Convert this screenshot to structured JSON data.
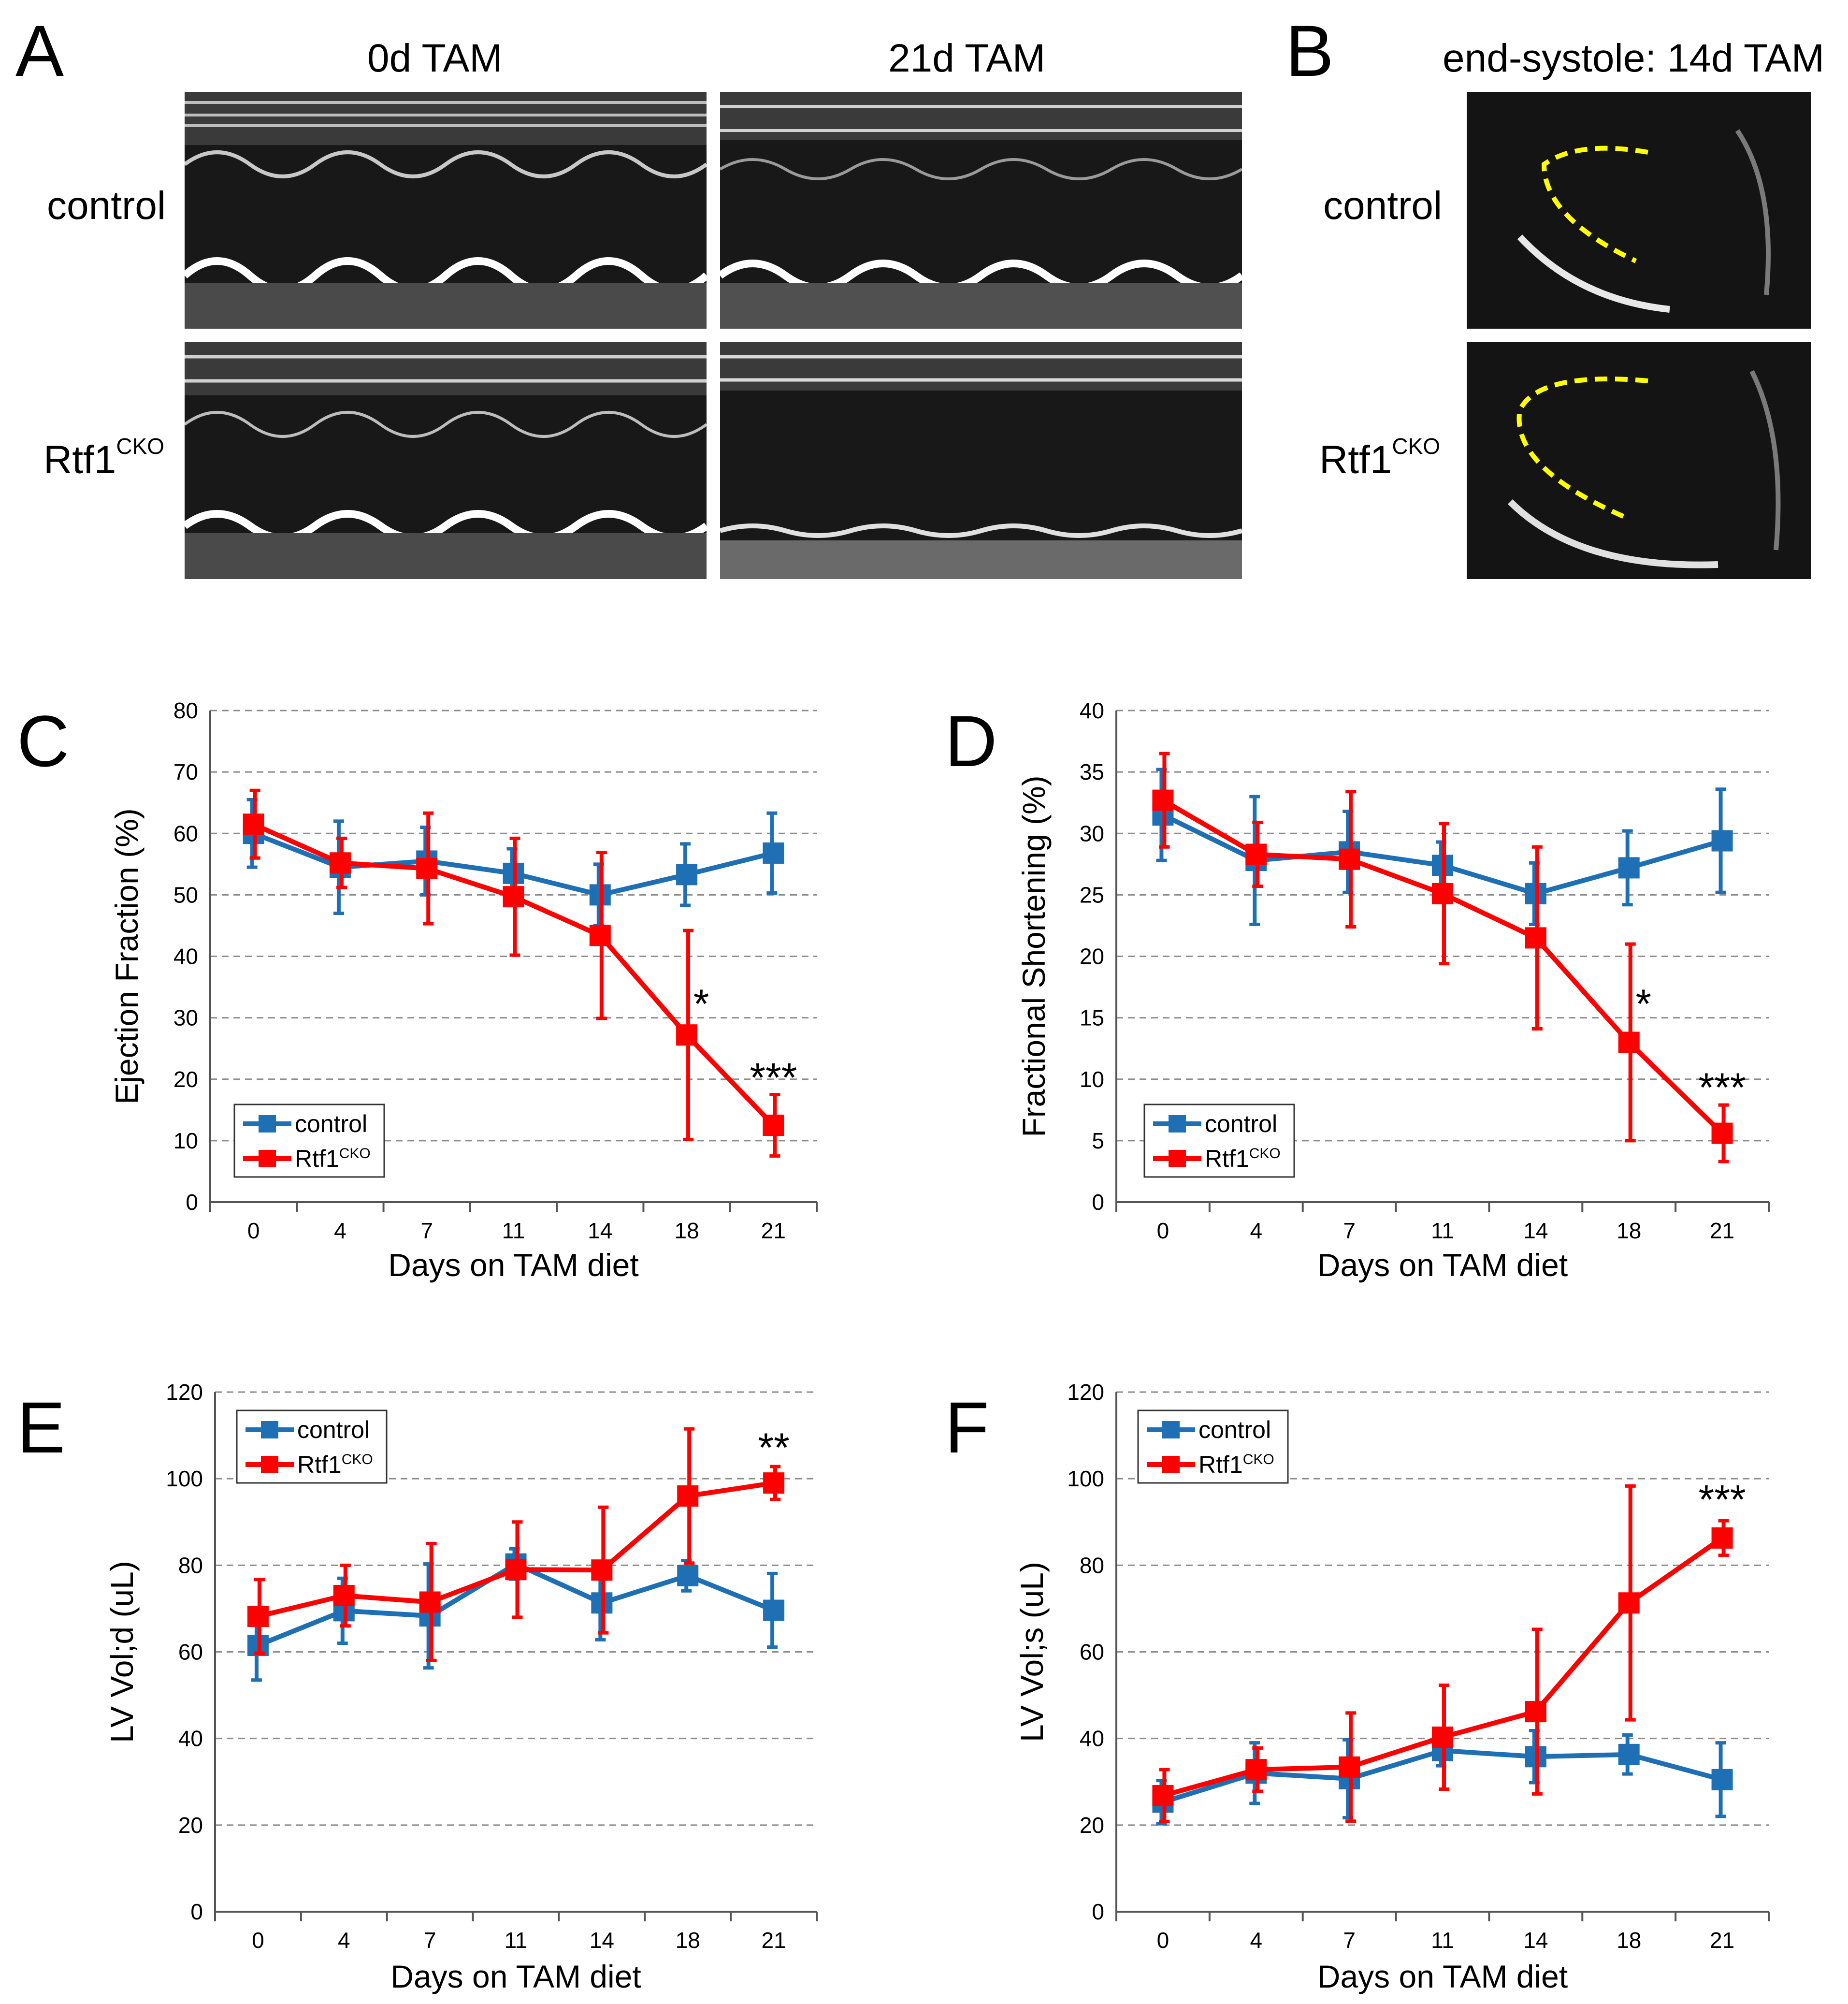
{
  "panels": {
    "A": {
      "letter": "A",
      "col_titles": [
        "0d TAM",
        "21d TAM"
      ],
      "row_labels": [
        {
          "base": "control",
          "sup": ""
        },
        {
          "base": "Rtf1",
          "sup": "CKO"
        }
      ]
    },
    "B": {
      "letter": "B",
      "title": "end-systole: 14d TAM",
      "row_labels": [
        {
          "base": "control",
          "sup": ""
        },
        {
          "base": "Rtf1",
          "sup": "CKO"
        }
      ],
      "trace_color": "#ffff00"
    }
  },
  "colors": {
    "control": "#1f6fb5",
    "rtf1": "#ff0000",
    "grid": "#8c8c8c"
  },
  "chart_data": [
    {
      "letter": "C",
      "type": "line",
      "ylabel": "Ejection Fraction (%)",
      "xlabel": "Days on TAM diet",
      "categories": [
        "0",
        "4",
        "7",
        "11",
        "14",
        "18",
        "21"
      ],
      "ylim": [
        0,
        80
      ],
      "yticks": [
        "0",
        "10",
        "20",
        "30",
        "40",
        "50",
        "60",
        "70",
        "80"
      ],
      "legend_position": "bottom-left",
      "series": [
        {
          "name": "control",
          "sup": "",
          "values": [
            60,
            54.5,
            55.5,
            53.5,
            50,
            53.3,
            56.8
          ],
          "err": [
            5.5,
            7.5,
            5.5,
            4,
            5,
            5,
            6.5
          ]
        },
        {
          "name": "Rtf1",
          "sup": "CKO",
          "values": [
            61.5,
            55.2,
            54.3,
            49.7,
            43.4,
            27.2,
            12.5
          ],
          "err": [
            5.5,
            4,
            9,
            9.5,
            13.5,
            17,
            5
          ]
        }
      ],
      "annotations": [
        {
          "text": "*",
          "category": "18",
          "y": 30
        },
        {
          "text": "***",
          "category": "21",
          "y": 18
        }
      ]
    },
    {
      "letter": "D",
      "type": "line",
      "ylabel": "Fractional Shortening (%)",
      "xlabel": "Days on TAM diet",
      "categories": [
        "0",
        "4",
        "7",
        "11",
        "14",
        "18",
        "21"
      ],
      "ylim": [
        0,
        40
      ],
      "yticks": [
        "0",
        "5",
        "10",
        "15",
        "20",
        "25",
        "30",
        "35",
        "40"
      ],
      "legend_position": "bottom-left",
      "series": [
        {
          "name": "control",
          "sup": "",
          "values": [
            31.5,
            27.8,
            28.5,
            27.4,
            25.1,
            27.2,
            29.4
          ],
          "err": [
            3.7,
            5.2,
            3.3,
            1.9,
            2.5,
            3,
            4.2
          ]
        },
        {
          "name": "Rtf1",
          "sup": "CKO",
          "values": [
            32.7,
            28.3,
            27.9,
            25.1,
            21.5,
            13,
            5.6
          ],
          "err": [
            3.8,
            2.6,
            5.5,
            5.7,
            7.4,
            8,
            2.3
          ]
        }
      ],
      "annotations": [
        {
          "text": "*",
          "category": "18",
          "y": 15
        },
        {
          "text": "***",
          "category": "21",
          "y": 8.2
        }
      ]
    },
    {
      "letter": "E",
      "type": "line",
      "ylabel": "LV Vol;d (uL)",
      "xlabel": "Days on TAM diet",
      "categories": [
        "0",
        "4",
        "7",
        "11",
        "14",
        "18",
        "21"
      ],
      "ylim": [
        0,
        120
      ],
      "yticks": [
        "0",
        "20",
        "40",
        "60",
        "80",
        "100",
        "120"
      ],
      "legend_position": "top-left",
      "series": [
        {
          "name": "control",
          "sup": "",
          "values": [
            61.5,
            69.5,
            68.3,
            80.3,
            71.3,
            77.6,
            69.6
          ],
          "err": [
            8,
            7.5,
            12,
            3.5,
            8.5,
            3.5,
            8.5
          ]
        },
        {
          "name": "Rtf1",
          "sup": "CKO",
          "values": [
            68.2,
            73,
            71.5,
            79,
            78.9,
            96,
            99
          ],
          "err": [
            8.5,
            7,
            13.5,
            11,
            14.5,
            15.5,
            3.8
          ]
        }
      ],
      "annotations": [
        {
          "text": "**",
          "category": "21",
          "y": 104
        }
      ]
    },
    {
      "letter": "F",
      "type": "line",
      "ylabel": "LV Vol;s (uL)",
      "xlabel": "Days on TAM diet",
      "categories": [
        "0",
        "4",
        "7",
        "11",
        "14",
        "18",
        "21"
      ],
      "ylim": [
        0,
        120
      ],
      "yticks": [
        "0",
        "20",
        "40",
        "60",
        "80",
        "100",
        "120"
      ],
      "legend_position": "top-left",
      "series": [
        {
          "name": "control",
          "sup": "",
          "values": [
            25.3,
            32,
            30.7,
            37.2,
            35.8,
            36.3,
            30.5
          ],
          "err": [
            5,
            7,
            9,
            3.5,
            6,
            4.5,
            8.5
          ]
        },
        {
          "name": "Rtf1",
          "sup": "CKO",
          "values": [
            26.8,
            32.8,
            33.4,
            40.3,
            46.2,
            71.3,
            86.3
          ],
          "err": [
            6,
            5,
            12.5,
            12,
            19,
            27,
            4
          ]
        }
      ],
      "annotations": [
        {
          "text": "***",
          "category": "21",
          "y": 92
        }
      ]
    }
  ]
}
